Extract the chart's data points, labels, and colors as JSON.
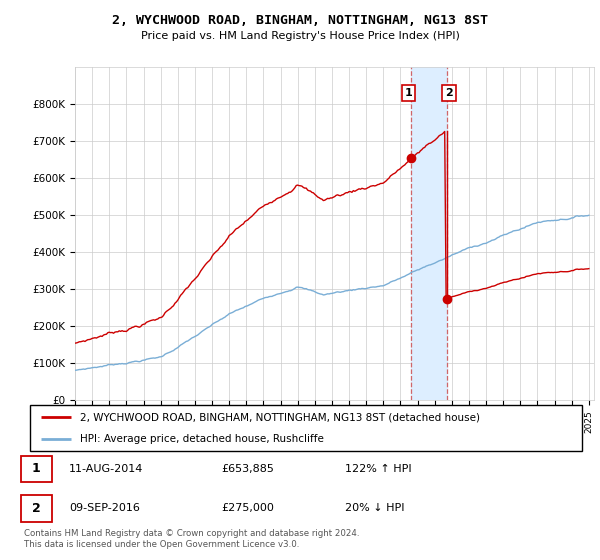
{
  "title": "2, WYCHWOOD ROAD, BINGHAM, NOTTINGHAM, NG13 8ST",
  "subtitle": "Price paid vs. HM Land Registry's House Price Index (HPI)",
  "legend_line1": "2, WYCHWOOD ROAD, BINGHAM, NOTTINGHAM, NG13 8ST (detached house)",
  "legend_line2": "HPI: Average price, detached house, Rushcliffe",
  "footnote": "Contains HM Land Registry data © Crown copyright and database right 2024.\nThis data is licensed under the Open Government Licence v3.0.",
  "table": [
    {
      "num": "1",
      "date": "11-AUG-2014",
      "price": "£653,885",
      "hpi": "122% ↑ HPI"
    },
    {
      "num": "2",
      "date": "09-SEP-2016",
      "price": "£275,000",
      "hpi": "20% ↓ HPI"
    }
  ],
  "transaction1_date": 2014.61,
  "transaction1_price": 653885,
  "transaction2_date": 2016.69,
  "transaction2_price": 275000,
  "hpi_color": "#7aaed6",
  "price_color": "#cc0000",
  "highlight_color": "#ddeeff",
  "vline_color": "#cc0000",
  "ylim_max": 900000,
  "ylim_min": 0
}
